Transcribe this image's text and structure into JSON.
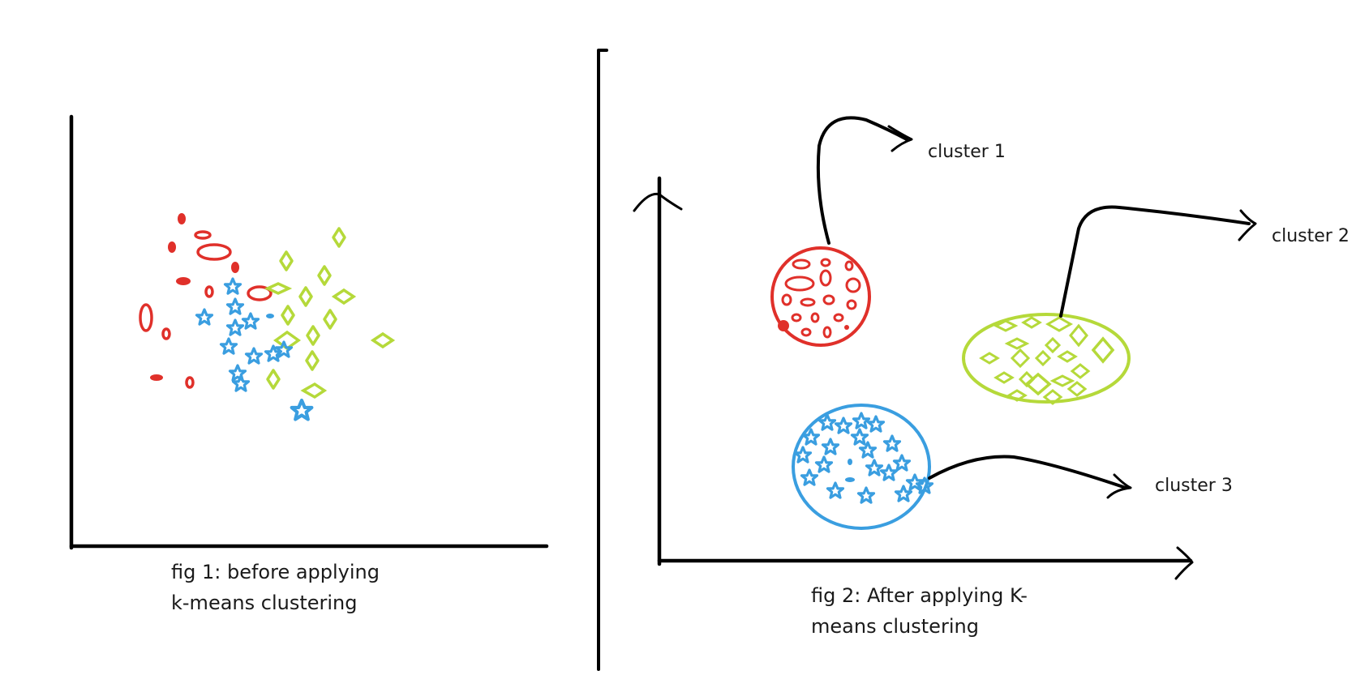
{
  "fig1": {
    "caption_line1": "fig 1: before applying",
    "caption_line2": "k-means clustering"
  },
  "fig2": {
    "caption_line1": "fig 2:  After applying K-",
    "caption_line2": "means clustering",
    "clusters": [
      {
        "label": "cluster 1",
        "color": "#e0302a",
        "marker": "ellipse"
      },
      {
        "label": "cluster 2",
        "color": "#b5d93a",
        "marker": "diamond"
      },
      {
        "label": "cluster 3",
        "color": "#3a9ee0",
        "marker": "star"
      }
    ]
  },
  "colors": {
    "red": "#e0302a",
    "green": "#b5d93a",
    "blue": "#3a9ee0",
    "ink": "#000000"
  }
}
